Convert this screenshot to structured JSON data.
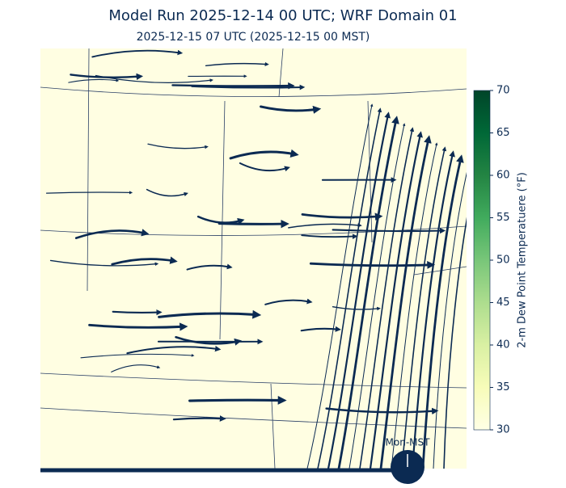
{
  "title": "Model Run 2025-12-14 00 UTC; WRF Domain 01",
  "subtitle": "2025-12-15 07 UTC  (2025-12-15 00 MST)",
  "colorbar": {
    "label": "2-m Dew Point Temperatuere (°F)",
    "lim": [
      30,
      70
    ],
    "ticks": [
      30,
      35,
      40,
      45,
      50,
      55,
      60,
      65,
      70
    ],
    "colors": [
      "#ffffe5",
      "#f7fcb9",
      "#d9f0a3",
      "#addd8e",
      "#78c679",
      "#41ab5d",
      "#238443",
      "#006837",
      "#004529"
    ]
  },
  "timeline": {
    "label": "Mon-MST"
  }
}
